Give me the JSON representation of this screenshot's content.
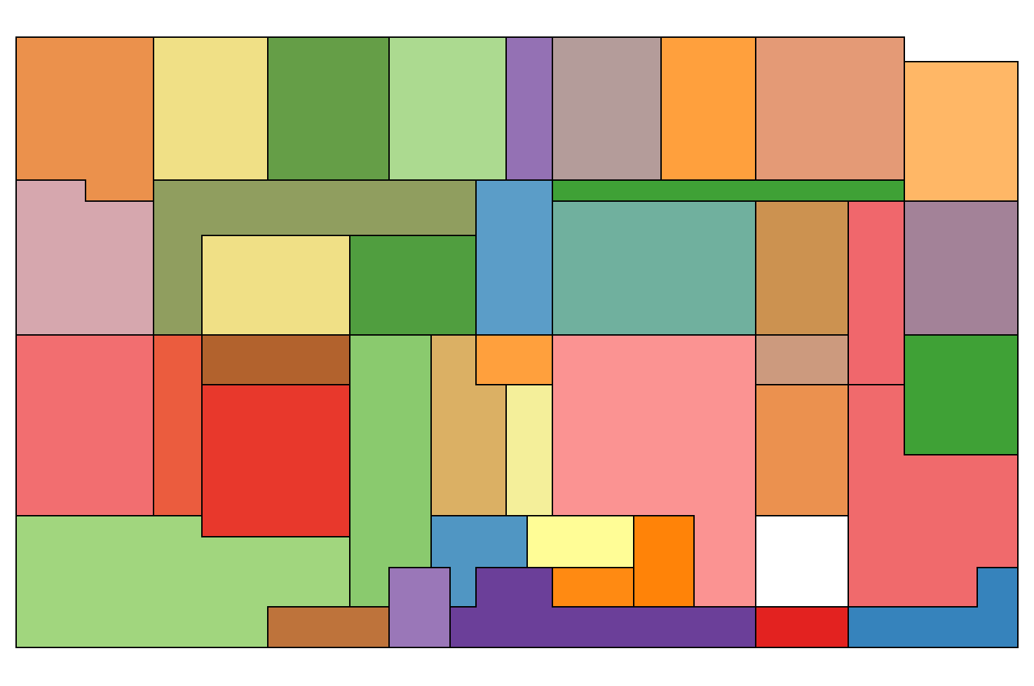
{
  "map": {
    "regions": [
      {
        "id": "r01",
        "fill": "#EB914C"
      },
      {
        "id": "r02",
        "fill": "#F0E086"
      },
      {
        "id": "r03",
        "fill": "#659E47"
      },
      {
        "id": "r04",
        "fill": "#ACDA90"
      },
      {
        "id": "r05",
        "fill": "#9471B4"
      },
      {
        "id": "r06",
        "fill": "#B49C9A"
      },
      {
        "id": "r07",
        "fill": "#FFA03D"
      },
      {
        "id": "r08",
        "fill": "#E49A76"
      },
      {
        "id": "r09",
        "fill": "#FFB766"
      },
      {
        "id": "r10",
        "fill": "#D6A7AE"
      },
      {
        "id": "r11",
        "fill": "#909E5F"
      },
      {
        "id": "r12",
        "fill": "#5B9DC8"
      },
      {
        "id": "r13",
        "fill": "#3FA136"
      },
      {
        "id": "r14",
        "fill": "#F0E086"
      },
      {
        "id": "r15",
        "fill": "#509E3F"
      },
      {
        "id": "r16",
        "fill": "#70B09E"
      },
      {
        "id": "r17",
        "fill": "#CC9250"
      },
      {
        "id": "r18",
        "fill": "#F0676C"
      },
      {
        "id": "r19",
        "fill": "#A38298"
      },
      {
        "id": "r20",
        "fill": "#F26E70"
      },
      {
        "id": "r21",
        "fill": "#EB5C3E"
      },
      {
        "id": "r22",
        "fill": "#B2622D"
      },
      {
        "id": "r23",
        "fill": "#E8382C"
      },
      {
        "id": "r24",
        "fill": "#8ACA6E"
      },
      {
        "id": "r25",
        "fill": "#DBB064"
      },
      {
        "id": "r26",
        "fill": "#FFA03D"
      },
      {
        "id": "r27",
        "fill": "#F4EF9A"
      },
      {
        "id": "r28",
        "fill": "#FB9392"
      },
      {
        "id": "r29",
        "fill": "#CC9A7E"
      },
      {
        "id": "r30",
        "fill": "#F06A6C"
      },
      {
        "id": "r31",
        "fill": "#3FA136"
      },
      {
        "id": "r32",
        "fill": "#EB914F"
      },
      {
        "id": "r33",
        "fill": "#A1D67E"
      },
      {
        "id": "r34",
        "fill": "#5096C3"
      },
      {
        "id": "r35",
        "fill": "#FFFD96"
      },
      {
        "id": "r36",
        "fill": "#FF8308"
      },
      {
        "id": "r37",
        "fill": "#FFFFFF"
      },
      {
        "id": "r38",
        "fill": "#6B3F99"
      },
      {
        "id": "r39",
        "fill": "#FF8A12"
      },
      {
        "id": "r40",
        "fill": "#BE733B"
      },
      {
        "id": "r41",
        "fill": "#9A77B8"
      },
      {
        "id": "r42",
        "fill": "#E32220"
      },
      {
        "id": "r43",
        "fill": "#3683BC"
      }
    ]
  }
}
